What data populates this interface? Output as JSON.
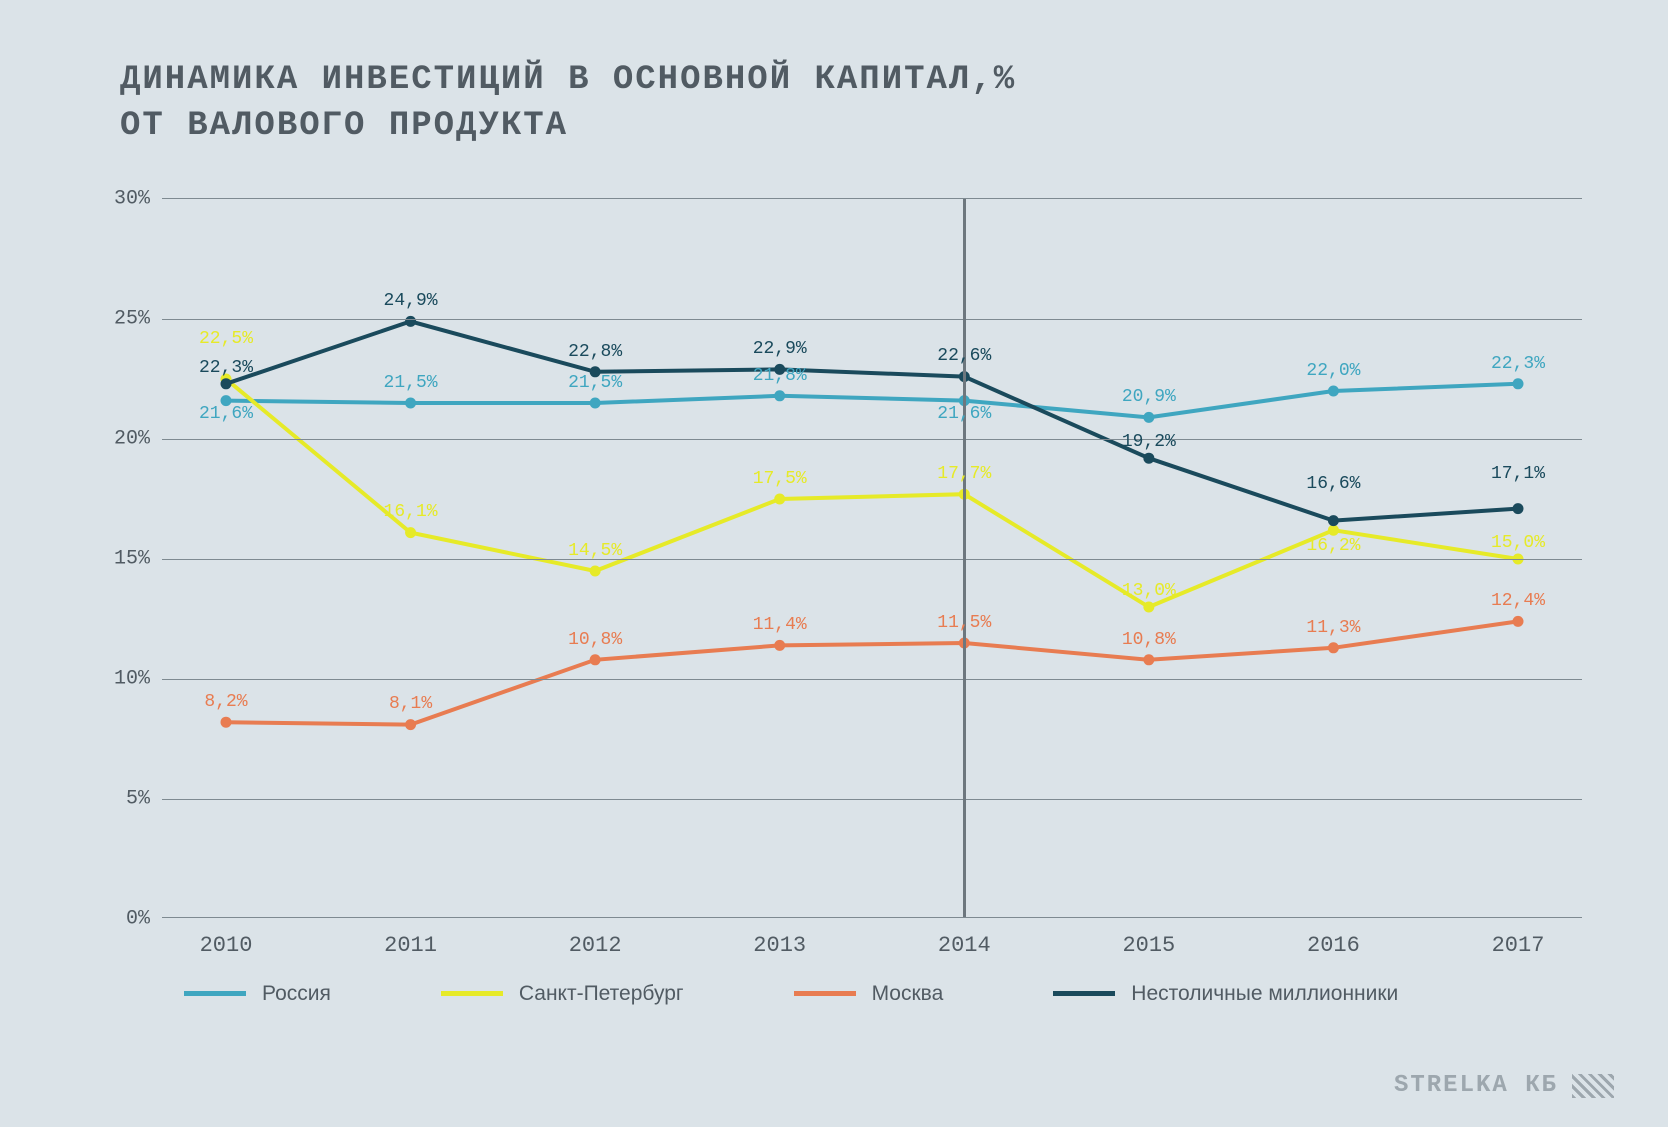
{
  "title_line1": "ДИНАМИКА ИНВЕСТИЦИЙ В ОСНОВНОЙ КАПИТАЛ,%",
  "title_line2": "ОТ ВАЛОВОГО ПРОДУКТА",
  "attribution": "STRELKA КБ",
  "chart": {
    "type": "line",
    "background_color": "#dbe3e8",
    "grid_color": "#7e8a91",
    "label_color": "#515b63",
    "label_fontsize": 20,
    "datalabel_fontsize": 18,
    "line_width": 4,
    "marker_radius": 5.5,
    "vline_year": 2014,
    "vline_color": "#6d777e",
    "ylim": [
      0,
      30
    ],
    "ytick_step": 5,
    "ytick_format": "{v}%",
    "years": [
      2010,
      2011,
      2012,
      2013,
      2014,
      2015,
      2016,
      2017
    ],
    "series": [
      {
        "key": "russia",
        "name": "Россия",
        "color": "#3fa6c0",
        "values": [
          21.6,
          21.5,
          21.5,
          21.8,
          21.6,
          20.9,
          22.0,
          22.3
        ],
        "label_dy": [
          24,
          -10,
          -10,
          -10,
          24,
          -10,
          -10,
          -10
        ]
      },
      {
        "key": "spb",
        "name": "Санкт-Петербург",
        "color": "#e6ea28",
        "values": [
          22.5,
          16.1,
          14.5,
          17.5,
          17.7,
          13.0,
          16.2,
          15.0
        ],
        "label_dy": [
          -30,
          -10,
          -10,
          -10,
          -10,
          -6,
          26,
          -6
        ]
      },
      {
        "key": "moscow",
        "name": "Москва",
        "color": "#e87c51",
        "values": [
          8.2,
          8.1,
          10.8,
          11.4,
          11.5,
          10.8,
          11.3,
          12.4
        ],
        "label_dy": [
          -10,
          -10,
          -10,
          -10,
          -10,
          -10,
          -10,
          -10
        ]
      },
      {
        "key": "noncapital",
        "name": "Нестоличные миллионники",
        "color": "#1a4a5c",
        "values": [
          22.3,
          24.9,
          22.8,
          22.9,
          22.6,
          19.2,
          16.6,
          17.1
        ],
        "label_dy": [
          -6,
          -10,
          -10,
          -10,
          -10,
          -6,
          -26,
          -24
        ]
      }
    ]
  }
}
